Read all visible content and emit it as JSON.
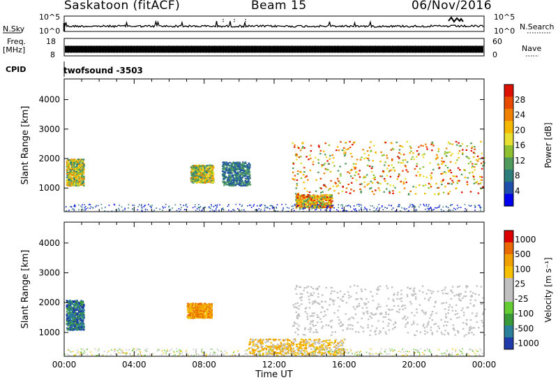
{
  "header": {
    "station": "Saskatoon (fitACF)",
    "beam": "Beam 15",
    "date": "06/Nov/2016"
  },
  "side_labels": {
    "nsky": "N.Sky",
    "freq_line1": "Freq.",
    "freq_line2": "[MHz]",
    "cpid": "CPID",
    "nsearch": "N.Search",
    "nave": "Nave"
  },
  "cpid_text": "twofsound -3503",
  "colors": {
    "velocity_gray": "#c0c0c0"
  },
  "chart_data": [
    {
      "type": "line",
      "title": "N.Sky / N.Search",
      "yticks_left": [
        "10^5",
        "10^0"
      ],
      "yticks_right": [
        "10^5",
        "10^0"
      ]
    },
    {
      "type": "bar",
      "title": "Freq. / Nave",
      "yticks_left": [
        "18",
        "8"
      ],
      "yticks_right": [
        "60",
        "0"
      ]
    },
    {
      "type": "heatmap",
      "ylabel": "Slant Range [km]",
      "ylim": [
        200,
        4700
      ],
      "yticks": [
        1000,
        2000,
        3000,
        4000
      ],
      "xlim": [
        0,
        24
      ],
      "colorbar": {
        "label": "Power [dB]",
        "ticks": [
          4,
          8,
          12,
          16,
          20,
          24,
          28
        ],
        "colors": [
          "#0000ee",
          "#1f4faa",
          "#2e7d7d",
          "#4f9a5c",
          "#8fc030",
          "#e8e030",
          "#f5b800",
          "#f08000",
          "#e84a00",
          "#dd1100"
        ]
      },
      "features": [
        {
          "t0": 0.1,
          "t1": 1.1,
          "r0": 1100,
          "r1": 2000,
          "level": "mid"
        },
        {
          "t0": 7.2,
          "t1": 8.5,
          "r0": 1200,
          "r1": 1800,
          "level": "mid"
        },
        {
          "t0": 9.0,
          "t1": 10.6,
          "r0": 1100,
          "r1": 1900,
          "level": "low"
        },
        {
          "t0": 13.2,
          "t1": 15.3,
          "r0": 350,
          "r1": 800,
          "level": "high"
        },
        {
          "t0": 13.0,
          "t1": 24.0,
          "r0": 800,
          "r1": 2600,
          "level": "high"
        }
      ]
    },
    {
      "type": "heatmap",
      "ylabel": "Slant Range [km]",
      "xlabel": "Time UT",
      "ylim": [
        200,
        4700
      ],
      "yticks": [
        1000,
        2000,
        3000,
        4000
      ],
      "xticks": [
        "00:00",
        "04:00",
        "08:00",
        "12:00",
        "16:00",
        "20:00",
        "00:00"
      ],
      "xlim": [
        0,
        24
      ],
      "colorbar": {
        "label": "Velocity [m s⁻¹]",
        "ticks": [
          "1000",
          "500",
          "100",
          "25",
          "-25",
          "-100",
          "-500",
          "-1000"
        ],
        "colors": [
          "#1f3aaa",
          "#2a7f9a",
          "#3a9a3a",
          "#66cc33",
          "#c0c0c0",
          "#c0c0c0",
          "#f5c000",
          "#f0a000",
          "#e86a00",
          "#dd0000"
        ]
      },
      "features": [
        {
          "t0": 0.1,
          "t1": 1.1,
          "r0": 1100,
          "r1": 2100,
          "level": "toward"
        },
        {
          "t0": 7.0,
          "t1": 8.4,
          "r0": 1500,
          "r1": 2000,
          "level": "away"
        },
        {
          "t0": 13.0,
          "t1": 24.0,
          "r0": 900,
          "r1": 2600,
          "level": "near-zero"
        },
        {
          "t0": 10.5,
          "t1": 16.0,
          "r0": 250,
          "r1": 800,
          "level": "away-slow"
        }
      ]
    }
  ]
}
